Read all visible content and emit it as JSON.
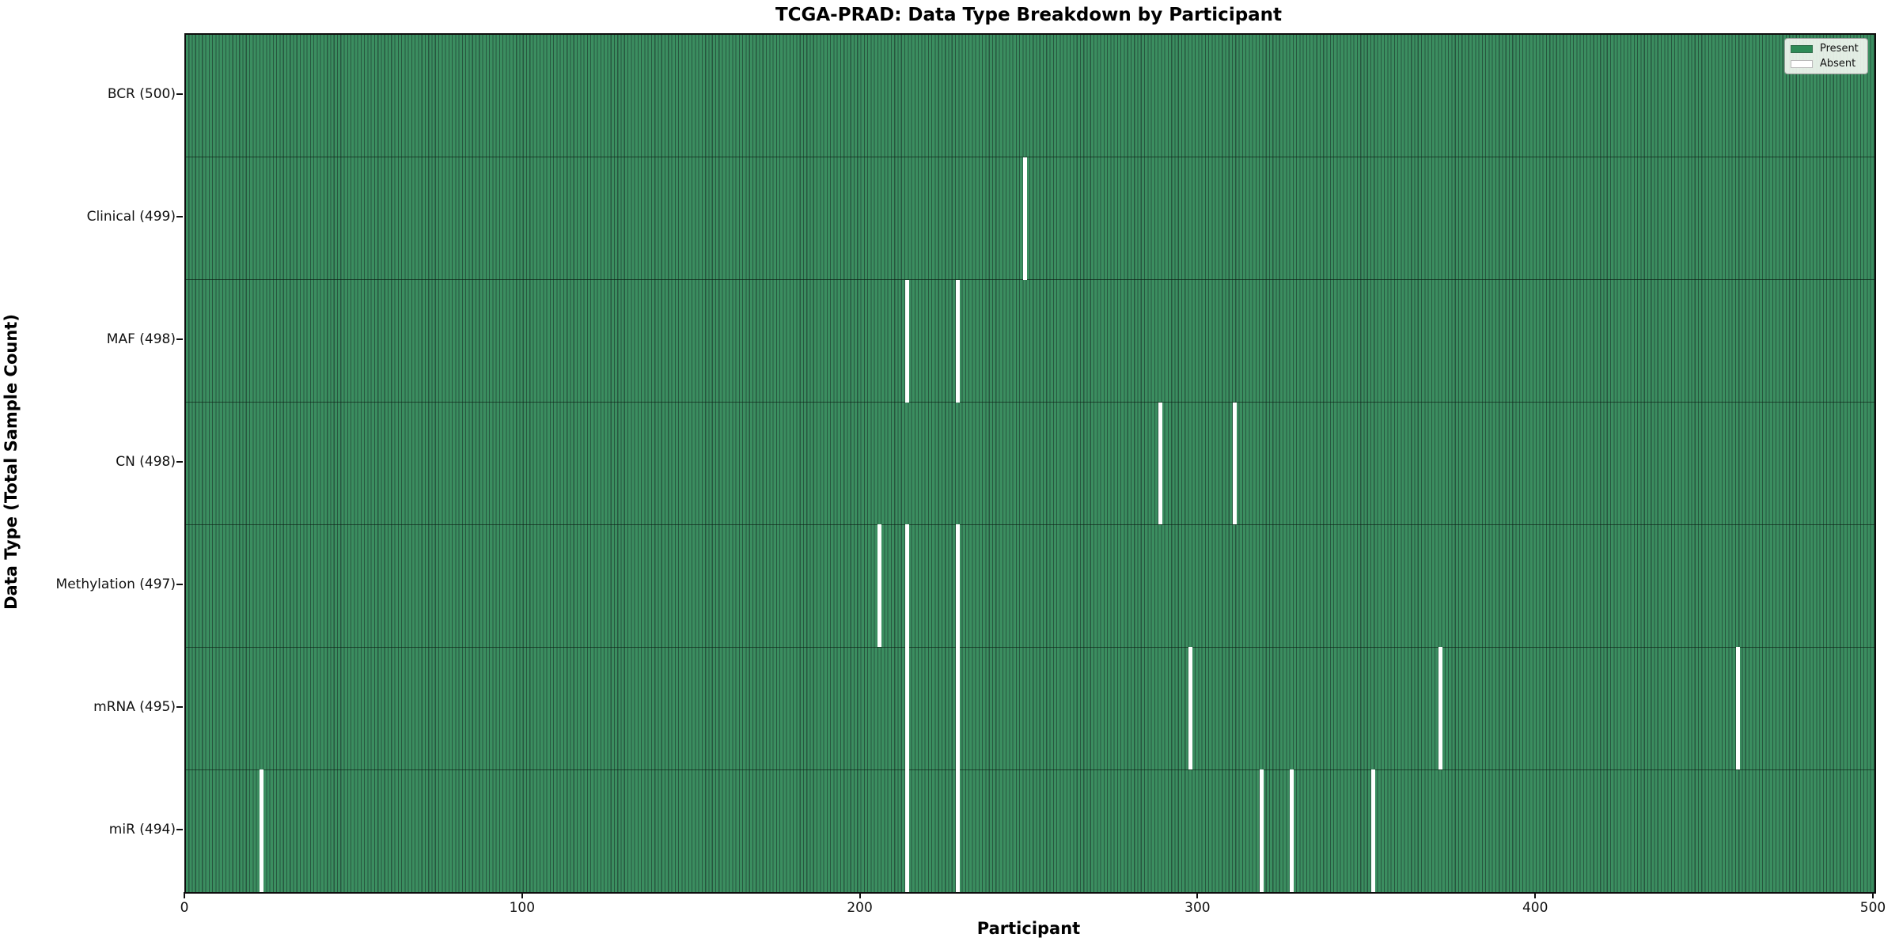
{
  "chart_data": {
    "type": "heatmap",
    "title": "TCGA-PRAD: Data Type Breakdown by Participant",
    "xlabel": "Participant",
    "ylabel": "Data Type (Total Sample Count)",
    "x_range": [
      0,
      500
    ],
    "x_ticks": [
      0,
      100,
      200,
      300,
      400,
      500
    ],
    "n_participants": 500,
    "grid": false,
    "legend_position": "upper right",
    "rows": [
      {
        "label": "BCR (500)",
        "data_type": "BCR",
        "present_count": 500,
        "absent_participants": []
      },
      {
        "label": "Clinical (499)",
        "data_type": "Clinical",
        "present_count": 499,
        "absent_participants": [
          248
        ]
      },
      {
        "label": "MAF (498)",
        "data_type": "MAF",
        "present_count": 498,
        "absent_participants": [
          213,
          228
        ]
      },
      {
        "label": "CN (498)",
        "data_type": "CN",
        "present_count": 498,
        "absent_participants": [
          288,
          310
        ]
      },
      {
        "label": "Methylation (497)",
        "data_type": "Methylation",
        "present_count": 497,
        "absent_participants": [
          205,
          213,
          228
        ]
      },
      {
        "label": "mRNA (495)",
        "data_type": "mRNA",
        "present_count": 495,
        "absent_participants": [
          213,
          228,
          297,
          371,
          459
        ]
      },
      {
        "label": "miR (494)",
        "data_type": "miR",
        "present_count": 494,
        "absent_participants": [
          22,
          213,
          228,
          318,
          327,
          351
        ]
      }
    ],
    "legend_items": [
      {
        "label": "Present",
        "color": "#2e8b57"
      },
      {
        "label": "Absent",
        "color": "#ffffff"
      }
    ],
    "colors": {
      "present_fill": "#3b8e60",
      "cell_edge": "#27573f",
      "absent_fill": "#ffffff",
      "spine": "#0d0d0d"
    }
  }
}
